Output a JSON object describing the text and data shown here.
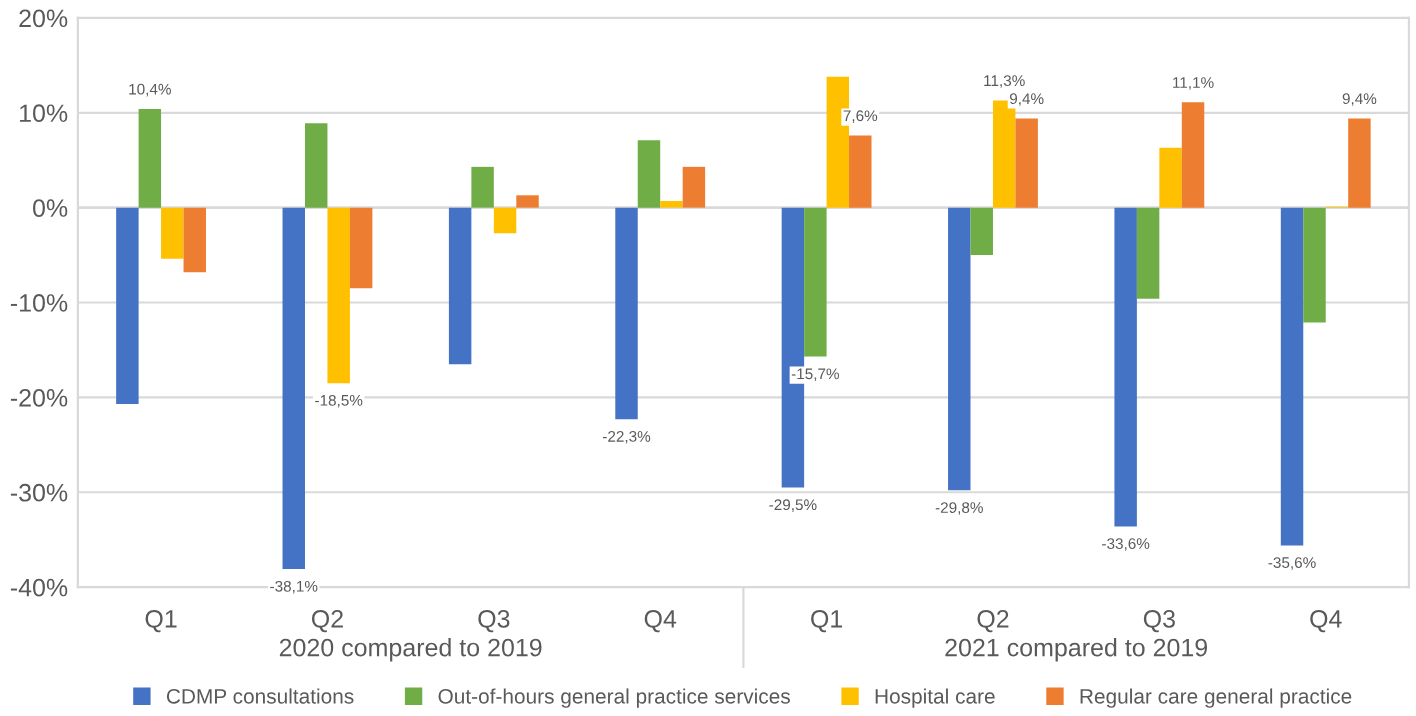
{
  "chart_data": {
    "type": "bar",
    "categories": [
      "Q1",
      "Q2",
      "Q3",
      "Q4",
      "Q1",
      "Q2",
      "Q3",
      "Q4"
    ],
    "series": [
      {
        "name": "CDMP consultations",
        "color": "#4472c4",
        "values": [
          -20.7,
          -38.1,
          -16.5,
          -22.3,
          -29.5,
          -29.8,
          -33.6,
          -35.6
        ],
        "value_labels": [
          null,
          "-38,1%",
          null,
          "-22,3%",
          "-29,5%",
          "-29,8%",
          "-33,6%",
          "-35,6%"
        ]
      },
      {
        "name": "Out-of-hours general practice services",
        "color": "#70ad47",
        "values": [
          10.4,
          8.9,
          4.3,
          7.1,
          -15.7,
          -5.0,
          -9.6,
          -12.1
        ],
        "value_labels": [
          "10,4%",
          null,
          null,
          null,
          "-15,7%",
          null,
          null,
          null
        ]
      },
      {
        "name": "Hospital care",
        "color": "#ffc000",
        "values": [
          -5.4,
          -18.5,
          -2.7,
          0.7,
          13.8,
          11.3,
          6.3,
          0.1
        ],
        "value_labels": [
          null,
          "-18,5%",
          null,
          null,
          null,
          "11,3%",
          null,
          null
        ]
      },
      {
        "name": "Regular care general practice",
        "color": "#ed7d31",
        "values": [
          -6.8,
          -8.5,
          1.3,
          4.3,
          7.6,
          9.4,
          11.1,
          9.4
        ],
        "value_labels": [
          null,
          null,
          null,
          null,
          "7,6%",
          "9,4%",
          "11,1%",
          "9,4%"
        ]
      }
    ],
    "ylim": [
      -40,
      20
    ],
    "yticks": [
      {
        "value": -40,
        "label": "-40%"
      },
      {
        "value": -30,
        "label": "-30%"
      },
      {
        "value": -20,
        "label": "-20%"
      },
      {
        "value": -10,
        "label": "-10%"
      },
      {
        "value": 0,
        "label": "0%"
      },
      {
        "value": 10,
        "label": "10%"
      },
      {
        "value": 20,
        "label": "20%"
      }
    ],
    "annotations": [
      "2020 compared to 2019",
      "2021 compared to 2019"
    ],
    "grid": "y",
    "legend": "bottom"
  }
}
